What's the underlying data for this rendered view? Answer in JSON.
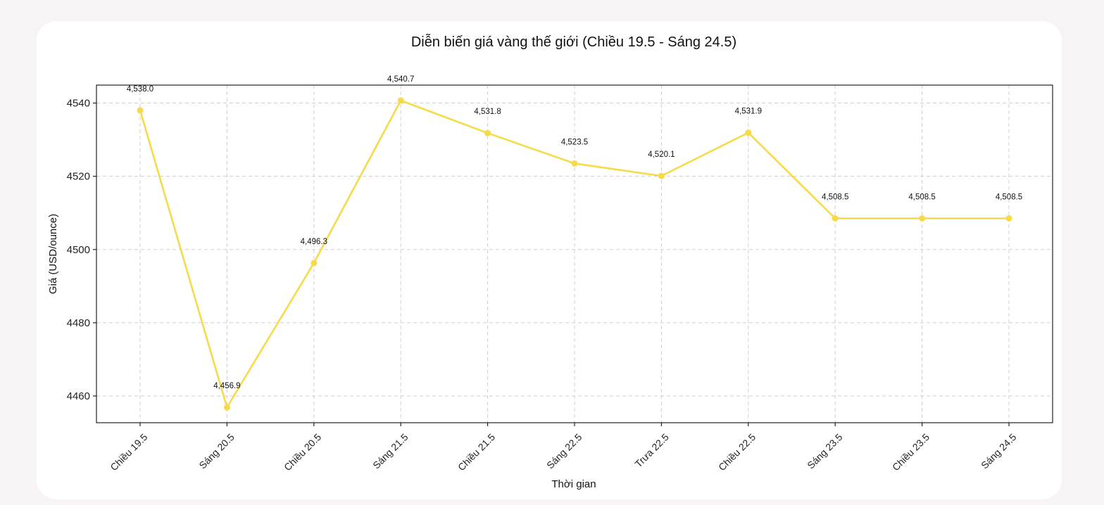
{
  "chart_data": {
    "type": "line",
    "title": "Diễn biến giá vàng thế giới (Chiều 19.5 - Sáng 24.5)",
    "xlabel": "Thời gian",
    "ylabel": "Giá (USD/ounce)",
    "categories": [
      "Chiều 19.5",
      "Sáng 20.5",
      "Chiều 20.5",
      "Sáng 21.5",
      "Chiều 21.5",
      "Sáng 22.5",
      "Trưa 22.5",
      "Chiều 22.5",
      "Sáng 23.5",
      "Chiều 23.5",
      "Sáng 24.5"
    ],
    "series": [
      {
        "values": [
          4538.0,
          4456.9,
          4496.3,
          4540.7,
          4531.8,
          4523.5,
          4520.1,
          4531.9,
          4508.5,
          4508.5,
          4508.5
        ],
        "color": "#f7da4a"
      }
    ],
    "data_labels": [
      "4,538.0",
      "4,456.9",
      "4,496.3",
      "4,540.7",
      "4,531.8",
      "4,523.5",
      "4,520.1",
      "4,531.9",
      "4,508.5",
      "4,508.5",
      "4,508.5"
    ],
    "yticks": [
      "4460",
      "4480",
      "4500",
      "4520",
      "4540"
    ],
    "ylim": [
      4452.7,
      4544.9
    ],
    "grid": true,
    "marker": "circle"
  }
}
